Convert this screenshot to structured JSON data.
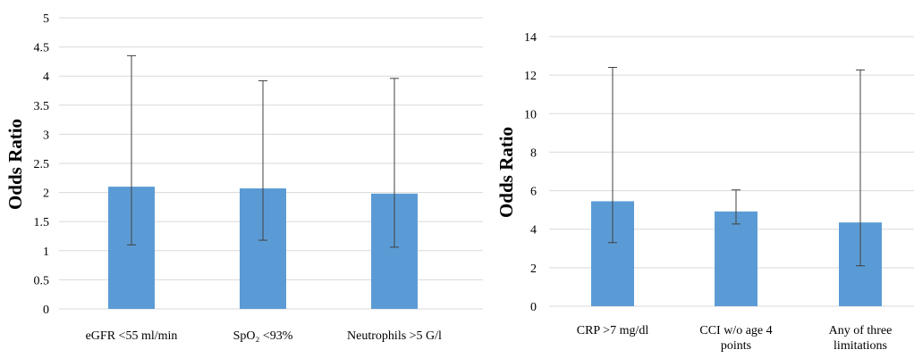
{
  "chart_data": [
    {
      "type": "bar",
      "categories": [
        "eGFR <55 ml/min",
        "SpO2 <93%",
        "Neutrophils >5 G/l"
      ],
      "values": [
        2.1,
        2.07,
        1.98
      ],
      "error_low": [
        1.1,
        1.18,
        1.06
      ],
      "error_high": [
        4.35,
        3.92,
        3.96
      ],
      "ylabel": "Odds Ratio",
      "ylim": [
        0,
        5
      ],
      "yticks": [
        0,
        0.5,
        1,
        1.5,
        2,
        2.5,
        3,
        3.5,
        4,
        4.5,
        5
      ],
      "grid": true,
      "color": "#5b9bd5"
    },
    {
      "type": "bar",
      "categories": [
        "CRP >7 mg/dl",
        "CCI w/o age 4 points",
        "Any of three limitations"
      ],
      "values": [
        5.45,
        4.92,
        4.35
      ],
      "error_low": [
        3.3,
        4.27,
        2.1
      ],
      "error_high": [
        12.4,
        6.04,
        12.27
      ],
      "ylabel": "Odds Ratio",
      "ylim": [
        0,
        14
      ],
      "yticks": [
        0,
        2,
        4,
        6,
        8,
        10,
        12,
        14
      ],
      "grid": true,
      "color": "#5b9bd5"
    }
  ]
}
